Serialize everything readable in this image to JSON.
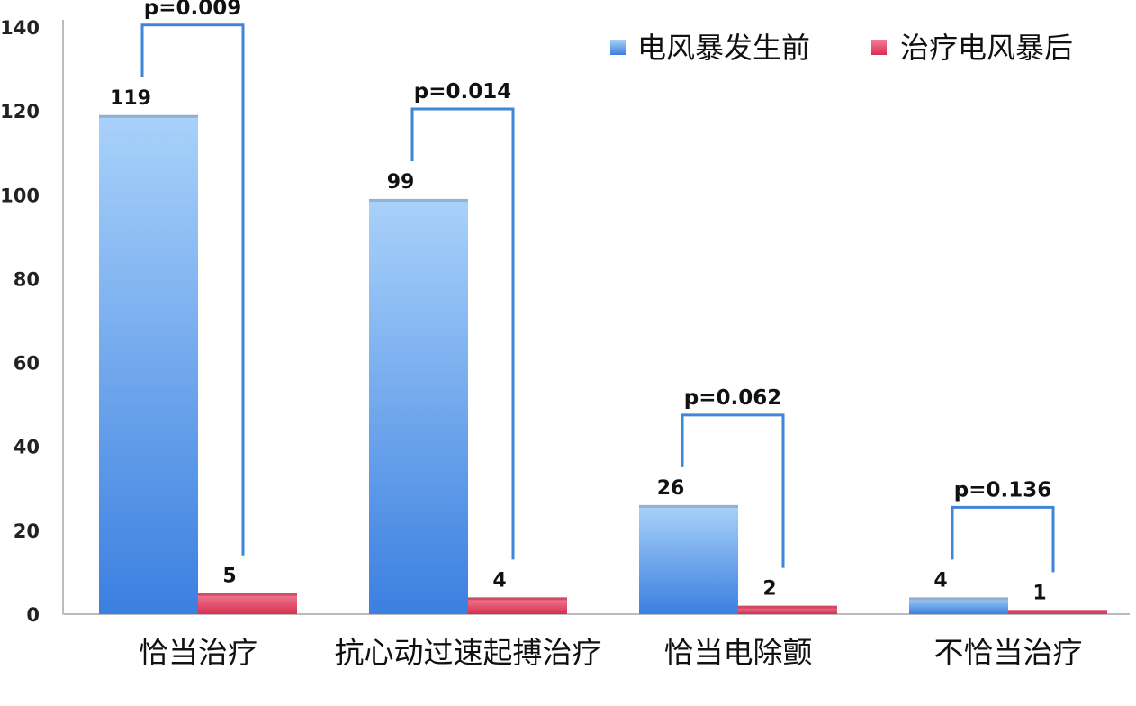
{
  "chart_data": {
    "type": "bar",
    "categories": [
      "恰当治疗",
      "抗心动过速起搏治疗",
      "恰当电除颤",
      "不恰当治疗"
    ],
    "series": [
      {
        "name": "电风暴发生前",
        "values": [
          119,
          99,
          26,
          4
        ],
        "color": "#4f90e8"
      },
      {
        "name": "治疗电风暴后",
        "values": [
          5,
          4,
          2,
          1
        ],
        "color": "#e0405e"
      }
    ],
    "ylim": [
      0,
      140
    ],
    "yticks": [
      0,
      20,
      40,
      60,
      80,
      100,
      120,
      140
    ],
    "xlabel": "",
    "ylabel": "",
    "legend": "top-right",
    "grid": false,
    "annotations": [
      {
        "category": "恰当治疗",
        "text": "p=0.009"
      },
      {
        "category": "抗心动过速起搏治疗",
        "text": "p=0.014"
      },
      {
        "category": "恰当电除颤",
        "text": "p=0.062"
      },
      {
        "category": "不恰当治疗",
        "text": "p=0.136"
      }
    ],
    "bracket_color": "#3f86d6"
  }
}
